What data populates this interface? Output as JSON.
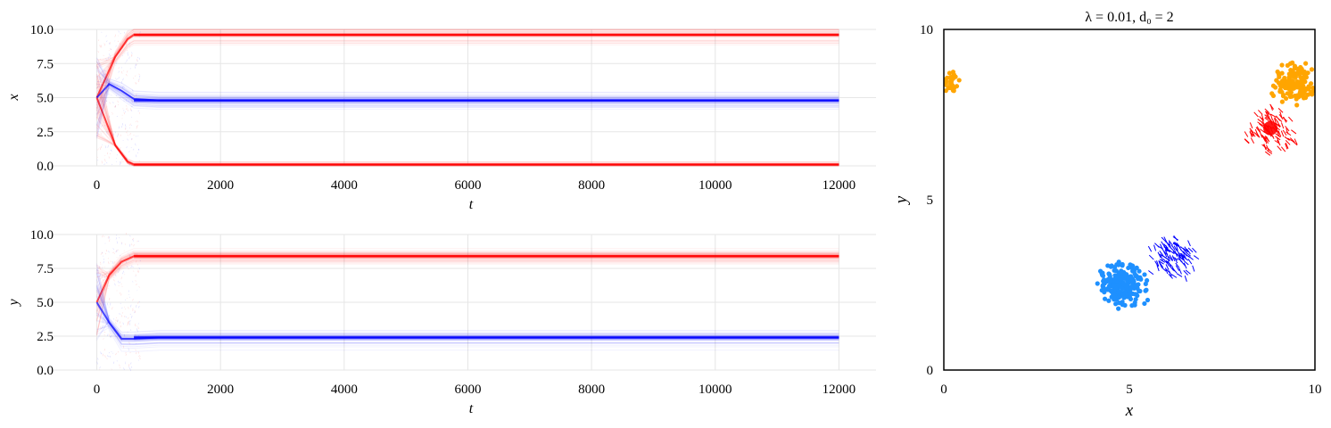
{
  "colors": {
    "red": "#ff0000",
    "blue": "#0000ff",
    "orange": "#ffa500",
    "lightblue": "#1e90ff",
    "grid": "#e6e6e6"
  },
  "chart_data": [
    {
      "type": "line",
      "xlabel": "t",
      "ylabel": "x",
      "xlim": [
        -700,
        12600
      ],
      "ylim": [
        0,
        10
      ],
      "xticks": [
        "0",
        "2000",
        "4000",
        "6000",
        "8000",
        "10000",
        "12000"
      ],
      "xtick_values": [
        0,
        2000,
        4000,
        6000,
        8000,
        10000,
        12000
      ],
      "yticks": [
        "0.0",
        "2.5",
        "5.0",
        "7.5",
        "10.0"
      ],
      "ytick_values": [
        0,
        2.5,
        5,
        7.5,
        10
      ],
      "grid": true,
      "series": [
        {
          "color": "red",
          "band_center": 9.6,
          "band_spread": 0.5,
          "x": [
            0,
            300,
            500,
            600,
            1000,
            12000
          ],
          "y": [
            5.0,
            8.0,
            9.3,
            9.6,
            9.6,
            9.6
          ]
        },
        {
          "color": "red",
          "band_center": 0.1,
          "band_spread": 0.15,
          "x": [
            0,
            300,
            500,
            600,
            1000,
            12000
          ],
          "y": [
            5.0,
            1.5,
            0.3,
            0.1,
            0.1,
            0.1
          ]
        },
        {
          "color": "blue",
          "band_center": 4.8,
          "band_spread": 0.6,
          "x": [
            0,
            200,
            400,
            600,
            1000,
            12000
          ],
          "y": [
            5.0,
            6.0,
            5.5,
            4.9,
            4.8,
            4.8
          ]
        }
      ]
    },
    {
      "type": "line",
      "xlabel": "t",
      "ylabel": "y",
      "xlim": [
        -700,
        12600
      ],
      "ylim": [
        0,
        10
      ],
      "xticks": [
        "0",
        "2000",
        "4000",
        "6000",
        "8000",
        "10000",
        "12000"
      ],
      "xtick_values": [
        0,
        2000,
        4000,
        6000,
        8000,
        10000,
        12000
      ],
      "yticks": [
        "0.0",
        "2.5",
        "5.0",
        "7.5",
        "10.0"
      ],
      "ytick_values": [
        0,
        2.5,
        5,
        7.5,
        10
      ],
      "grid": true,
      "series": [
        {
          "color": "red",
          "band_center": 8.4,
          "band_spread": 0.6,
          "x": [
            0,
            200,
            400,
            600,
            1000,
            12000
          ],
          "y": [
            5.0,
            7.0,
            8.0,
            8.4,
            8.4,
            8.4
          ]
        },
        {
          "color": "blue",
          "band_center": 2.4,
          "band_spread": 0.6,
          "x": [
            0,
            200,
            400,
            600,
            1000,
            12000
          ],
          "y": [
            5.0,
            3.5,
            2.3,
            2.3,
            2.4,
            2.4
          ]
        }
      ]
    },
    {
      "type": "scatter",
      "title": "λ = 0.01,  d₀ = 2",
      "xlabel": "x",
      "ylabel": "y",
      "xlim": [
        0,
        10
      ],
      "ylim": [
        0,
        10
      ],
      "xticks": [
        "0",
        "5",
        "10"
      ],
      "xtick_values": [
        0,
        5,
        10
      ],
      "yticks": [
        "0",
        "5",
        "10"
      ],
      "ytick_values": [
        0,
        5,
        10
      ],
      "grid": false,
      "clusters": [
        {
          "color": "orange",
          "marker": "dot",
          "center": [
            9.4,
            8.4
          ],
          "radius": 0.75,
          "count": 140
        },
        {
          "color": "orange",
          "marker": "dot",
          "center": [
            0.1,
            8.4
          ],
          "radius": 0.45,
          "count": 30
        },
        {
          "color": "red",
          "marker": "arrow",
          "center": [
            8.8,
            7.1
          ],
          "radius": 0.8,
          "count": 110
        },
        {
          "color": "blue",
          "marker": "arrow",
          "center": [
            6.1,
            3.4
          ],
          "radius": 0.8,
          "count": 110
        },
        {
          "color": "lightblue",
          "marker": "dot",
          "center": [
            4.8,
            2.5
          ],
          "radius": 0.85,
          "count": 200
        }
      ]
    }
  ]
}
